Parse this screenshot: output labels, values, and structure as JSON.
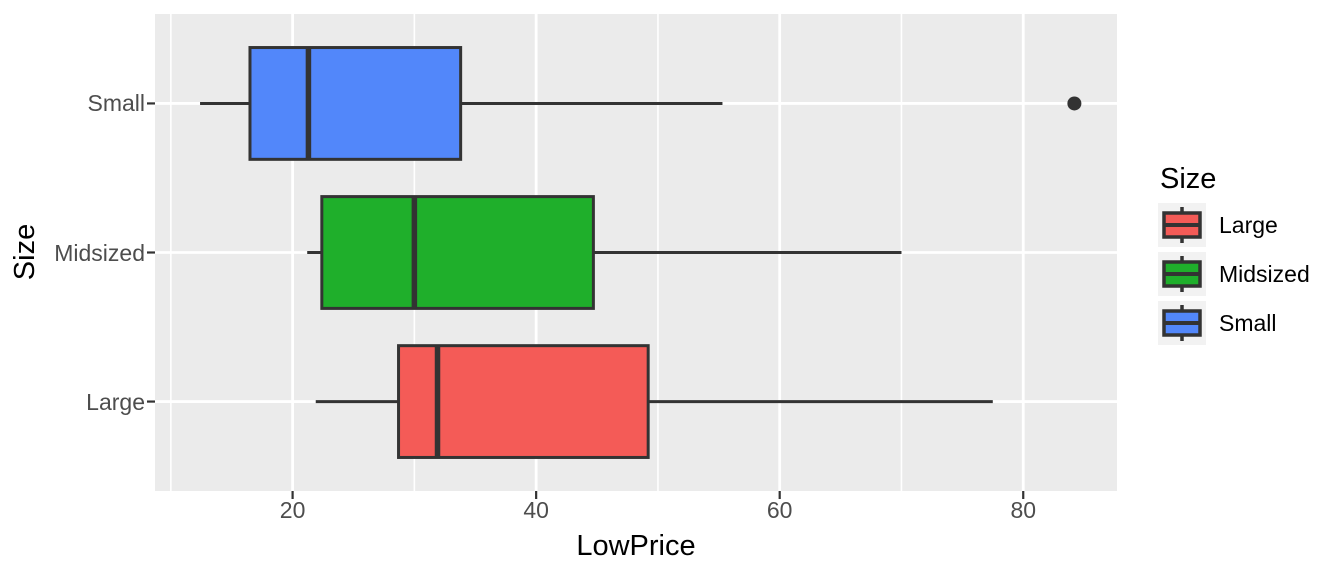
{
  "figure_bg": "#FFFFFF",
  "chart_data": {
    "type": "boxplot",
    "orientation": "horizontal",
    "title": "",
    "xlabel": "LowPrice",
    "ylabel": "Size",
    "xlim": [
      8.7,
      87.7
    ],
    "xticks": [
      20,
      40,
      60,
      80
    ],
    "xminor": [
      10,
      30,
      50,
      70
    ],
    "grid": "on",
    "panel_bg": "#EBEBEB",
    "grid_color": "#FFFFFF",
    "stroke_color": "#333333",
    "tick_label_color": "#4D4D4D",
    "categories": [
      "Small",
      "Midsized",
      "Large"
    ],
    "series": [
      {
        "name": "Small",
        "color": "#5287FA",
        "whisker_low": 12.4,
        "q1": 16.5,
        "median": 21.3,
        "q3": 33.8,
        "whisker_high": 55.3,
        "outliers": [
          84.2
        ]
      },
      {
        "name": "Midsized",
        "color": "#1FAF2B",
        "whisker_low": 21.2,
        "q1": 22.4,
        "median": 30.0,
        "q3": 44.7,
        "whisker_high": 70.0,
        "outliers": []
      },
      {
        "name": "Large",
        "color": "#F45B57",
        "whisker_low": 21.9,
        "q1": 28.7,
        "median": 31.9,
        "q3": 49.2,
        "whisker_high": 77.5,
        "outliers": []
      }
    ],
    "legend": {
      "title": "Size",
      "position": "right",
      "key_bg": "#F2F2F2",
      "entries": [
        {
          "label": "Large",
          "color": "#F45B57"
        },
        {
          "label": "Midsized",
          "color": "#1FAF2B"
        },
        {
          "label": "Small",
          "color": "#5287FA"
        }
      ]
    }
  }
}
